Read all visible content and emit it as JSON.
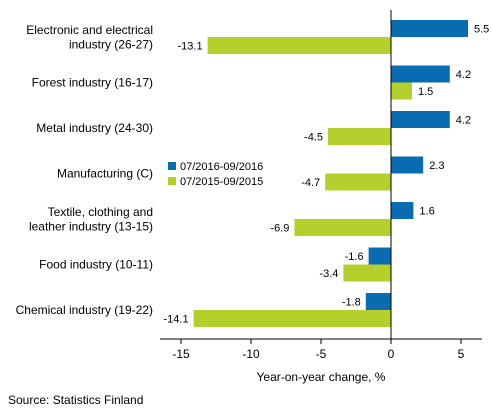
{
  "chart_data": {
    "type": "bar",
    "orientation": "horizontal",
    "categories": [
      [
        "Electronic and electrical",
        "industry (26-27)"
      ],
      [
        "Forest industry (16-17)"
      ],
      [
        "Metal industry (24-30)"
      ],
      [
        "Manufacturing (C)"
      ],
      [
        "Textile, clothing and",
        "leather industry (13-15)"
      ],
      [
        "Food industry (10-11)"
      ],
      [
        "Chemical industry (19-22)"
      ]
    ],
    "series": [
      {
        "name": "07/2016-09/2016",
        "color": "#0a6cb0",
        "values": [
          5.5,
          4.2,
          4.2,
          2.3,
          1.6,
          -1.6,
          -1.8
        ]
      },
      {
        "name": "07/2015-09/2015",
        "color": "#b5cf2c",
        "values": [
          -13.1,
          1.5,
          -4.5,
          -4.7,
          -6.9,
          -3.4,
          -14.1
        ]
      }
    ],
    "value_labels": [
      [
        "5.5",
        "4.2",
        "4.2",
        "2.3",
        "1.6",
        "-1.6",
        "-1.8"
      ],
      [
        "-13.1",
        "1.5",
        "-4.5",
        "-4.7",
        "-6.9",
        "-3.4",
        "-14.1"
      ]
    ],
    "xlim": [
      -16.5,
      6.5
    ],
    "xticks": [
      -15,
      -10,
      -5,
      0,
      5
    ],
    "xtick_labels": [
      "-15",
      "-10",
      "-5",
      "0",
      "5"
    ],
    "xlabel": "Year-on-year change, %",
    "grid": false,
    "legend_position": "left, beside Manufacturing (C)",
    "source": "Source: Statistics Finland"
  }
}
